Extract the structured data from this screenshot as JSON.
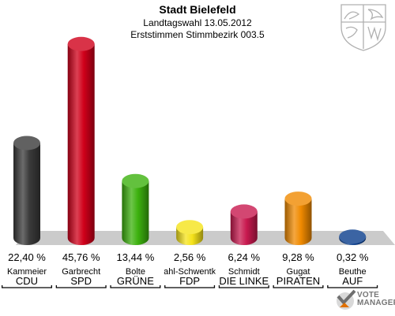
{
  "header": {
    "title": "Stadt Bielefeld",
    "subtitle1": "Landtagswahl 13.05.2012",
    "subtitle2": "Erststimmen Stimmbezirk 003.5"
  },
  "chart_data": {
    "type": "bar",
    "title": "Stadt Bielefeld",
    "subtitle": [
      "Landtagswahl 13.05.2012",
      "Erststimmen Stimmbezirk 003.5"
    ],
    "categories": [
      "CDU",
      "SPD",
      "GRÜNE",
      "FDP",
      "DIE LINKE",
      "PIRATEN",
      "AUF"
    ],
    "candidates": [
      "Kammeier",
      "Garbrecht",
      "Bolte",
      "Wahl-Schwentker",
      "Schmidt",
      "Gugat",
      "Beuthe"
    ],
    "values": [
      22.4,
      45.76,
      13.44,
      2.56,
      6.24,
      9.28,
      0.32
    ],
    "value_labels": [
      "22,40 %",
      "45,76 %",
      "13,44 %",
      "2,56 %",
      "6,24 %",
      "9,28 %",
      "0,32 %"
    ],
    "colors": [
      "#3a3a3a",
      "#d0001a",
      "#3cb10e",
      "#f5e31a",
      "#c8194f",
      "#f08a00",
      "#0a3d8c"
    ],
    "ylim": [
      0,
      50
    ]
  },
  "logo": {
    "text_line1": "VOTE",
    "text_line2": "MANAGER",
    "crest_icon": "nrw-coat-of-arms-icon"
  }
}
